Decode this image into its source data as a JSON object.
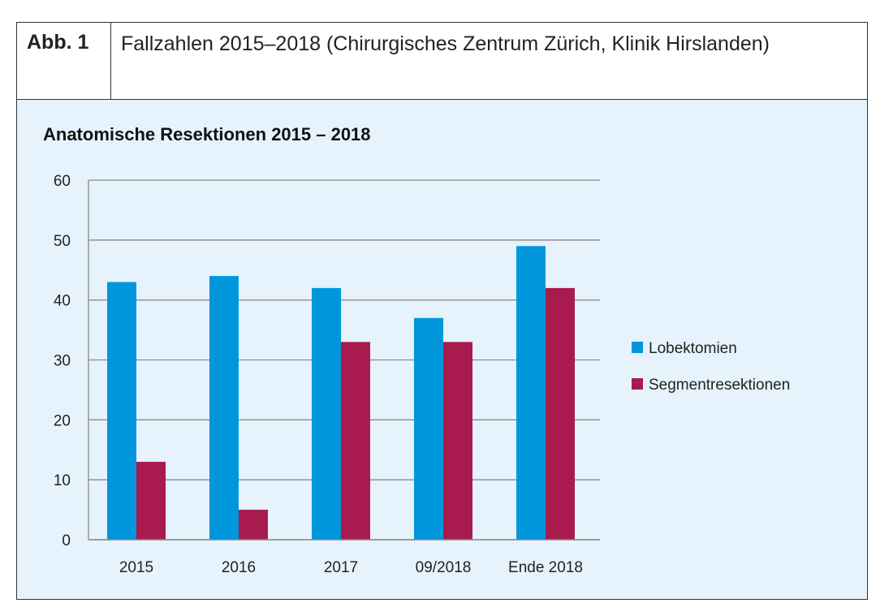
{
  "caption": {
    "label": "Abb. 1",
    "text": "Fallzahlen 2015–2018 (Chirurgisches Zentrum Zürich, Klinik Hirslanden)"
  },
  "chart_data": {
    "type": "bar",
    "title": "Anatomische Resektionen 2015 – 2018",
    "xlabel": "",
    "ylabel": "",
    "categories": [
      "2015",
      "2016",
      "2017",
      "09/2018",
      "Ende 2018"
    ],
    "series": [
      {
        "name": "Lobektomien",
        "color": "#0096dc",
        "values": [
          43,
          44,
          42,
          37,
          49
        ]
      },
      {
        "name": "Segmentresektionen",
        "color": "#a91b4f",
        "values": [
          13,
          5,
          33,
          33,
          42
        ]
      }
    ],
    "ylim": [
      0,
      60
    ],
    "yticks": [
      0,
      10,
      20,
      30,
      40,
      50,
      60
    ],
    "grid": true,
    "legend": "right"
  }
}
